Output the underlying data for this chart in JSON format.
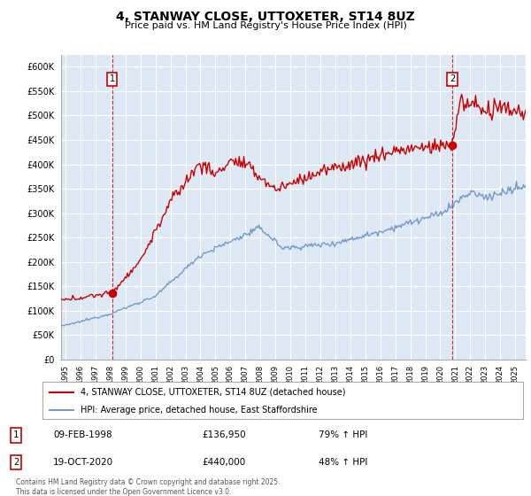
{
  "title": "4, STANWAY CLOSE, UTTOXETER, ST14 8UZ",
  "subtitle": "Price paid vs. HM Land Registry's House Price Index (HPI)",
  "legend_line1": "4, STANWAY CLOSE, UTTOXETER, ST14 8UZ (detached house)",
  "legend_line2": "HPI: Average price, detached house, East Staffordshire",
  "table_rows": [
    {
      "num": "1",
      "date": "09-FEB-1998",
      "price": "£136,950",
      "change": "79% ↑ HPI"
    },
    {
      "num": "2",
      "date": "19-OCT-2020",
      "price": "£440,000",
      "change": "48% ↑ HPI"
    }
  ],
  "footer": "Contains HM Land Registry data © Crown copyright and database right 2025.\nThis data is licensed under the Open Government Licence v3.0.",
  "ylabel_ticks": [
    "£0",
    "£50K",
    "£100K",
    "£150K",
    "£200K",
    "£250K",
    "£300K",
    "£350K",
    "£400K",
    "£450K",
    "£500K",
    "£550K",
    "£600K"
  ],
  "ytick_values": [
    0,
    50000,
    100000,
    150000,
    200000,
    250000,
    300000,
    350000,
    400000,
    450000,
    500000,
    550000,
    600000
  ],
  "ylim": [
    0,
    625000
  ],
  "xlim_start": 1994.7,
  "xlim_end": 2025.7,
  "hpi_color": "#7799cc",
  "price_color": "#cc0000",
  "marker1_year": 1998.1,
  "marker2_year": 2020.8,
  "marker1_price": 136950,
  "marker2_price": 440000,
  "chart_bg_color": "#dde8f5",
  "background_color": "#ffffff",
  "grid_color": "#ffffff"
}
